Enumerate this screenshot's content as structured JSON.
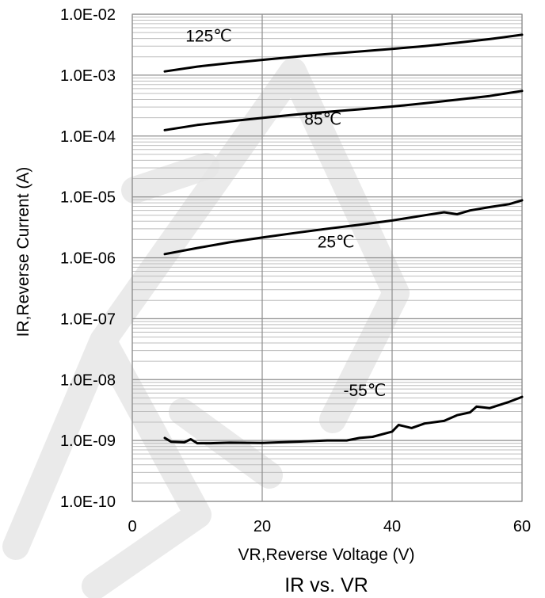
{
  "chart_data": {
    "type": "line",
    "title": "IR vs. VR",
    "xlabel": "VR,Reverse Voltage (V)",
    "ylabel": "IR,Reverse Current (A)",
    "xlim": [
      0,
      60
    ],
    "ylim": [
      1e-10,
      0.01
    ],
    "yscale": "log",
    "grid": true,
    "x_ticks": [
      0,
      20,
      40,
      60
    ],
    "x_tick_labels": [
      "0",
      "20",
      "40",
      "60"
    ],
    "y_ticks": [
      1e-10,
      1e-09,
      1e-08,
      1e-07,
      1e-06,
      1e-05,
      0.0001,
      0.001,
      0.01
    ],
    "y_tick_labels": [
      "1.0E-10",
      "1.0E-09",
      "1.0E-08",
      "1.0E-07",
      "1.0E-06",
      "1.0E-05",
      "1.0E-04",
      "1.0E-03",
      "1.0E-02"
    ],
    "line_color": "#000000",
    "series": [
      {
        "name": "125℃",
        "x": [
          5,
          10,
          15,
          20,
          25,
          30,
          35,
          40,
          45,
          50,
          55,
          60
        ],
        "y": [
          0.00115,
          0.00138,
          0.00158,
          0.00178,
          0.002,
          0.00222,
          0.00245,
          0.0027,
          0.003,
          0.0034,
          0.0039,
          0.0046
        ]
      },
      {
        "name": "85℃",
        "x": [
          5,
          10,
          15,
          20,
          25,
          30,
          35,
          40,
          45,
          50,
          55,
          60
        ],
        "y": [
          0.000125,
          0.000152,
          0.000175,
          0.000198,
          0.000225,
          0.00025,
          0.000275,
          0.000305,
          0.000345,
          0.000395,
          0.000455,
          0.00055
        ]
      },
      {
        "name": "25℃",
        "x": [
          5,
          10,
          15,
          20,
          25,
          30,
          35,
          40,
          45,
          48,
          50,
          52,
          55,
          58,
          60
        ],
        "y": [
          1.15e-06,
          1.45e-06,
          1.8e-06,
          2.15e-06,
          2.55e-06,
          3e-06,
          3.5e-06,
          4.1e-06,
          5e-06,
          5.6e-06,
          5.2e-06,
          6e-06,
          6.8e-06,
          7.6e-06,
          8.8e-06
        ]
      },
      {
        "name": "-55℃",
        "x": [
          5,
          6,
          8,
          9,
          10,
          12,
          15,
          20,
          25,
          30,
          33,
          35,
          37,
          40,
          41,
          43,
          45,
          48,
          50,
          52,
          53,
          55,
          58,
          60
        ],
        "y": [
          1.1e-09,
          9.5e-10,
          9.3e-10,
          1.05e-09,
          9e-10,
          9e-10,
          9.2e-10,
          9.1e-10,
          9.5e-10,
          1e-09,
          1e-09,
          1.1e-09,
          1.15e-09,
          1.4e-09,
          1.8e-09,
          1.6e-09,
          1.9e-09,
          2.1e-09,
          2.6e-09,
          2.9e-09,
          3.6e-09,
          3.4e-09,
          4.3e-09,
          5.2e-09
        ]
      }
    ]
  }
}
